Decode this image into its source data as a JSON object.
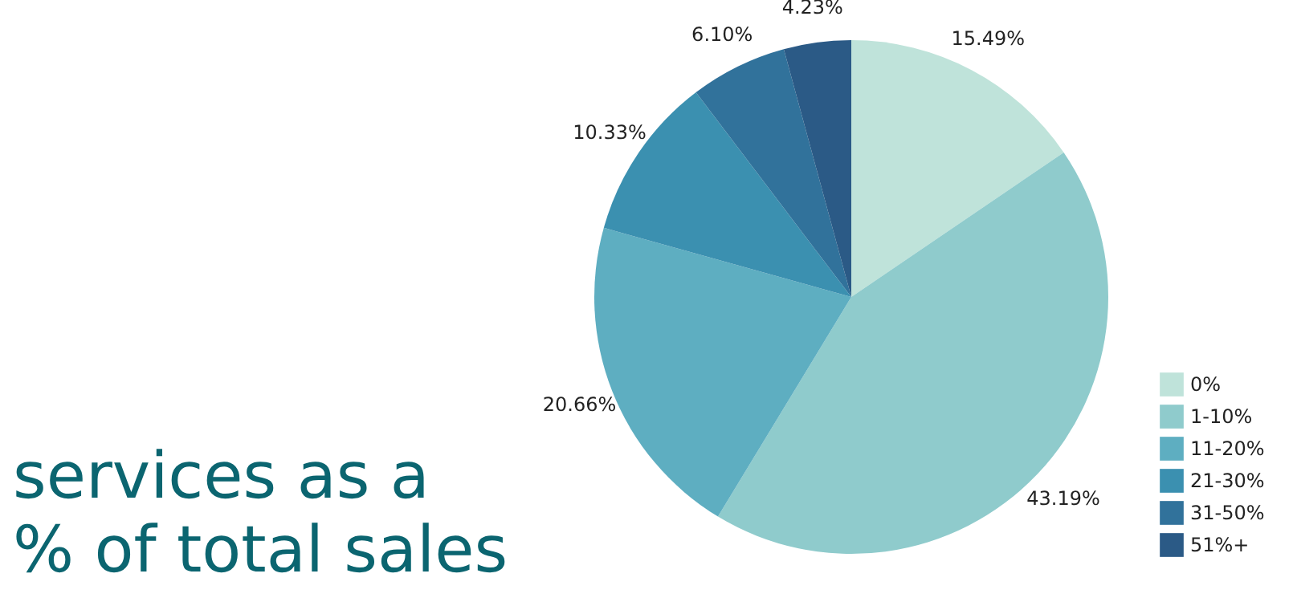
{
  "chart_data": {
    "type": "pie",
    "title": "services as a\n% of total sales",
    "categories": [
      "0%",
      "1-10%",
      "11-20%",
      "21-30%",
      "31-50%",
      "51%+"
    ],
    "values": [
      15.49,
      43.19,
      20.66,
      10.33,
      6.1,
      4.23
    ],
    "value_labels": [
      "15.49%",
      "43.19%",
      "20.66%",
      "10.33%",
      "6.10%",
      "4.23%"
    ],
    "colors": [
      "#bfe3da",
      "#8fcbcc",
      "#5eaec1",
      "#3b90b0",
      "#31729b",
      "#2b5a86"
    ],
    "legend": "bottom right"
  }
}
